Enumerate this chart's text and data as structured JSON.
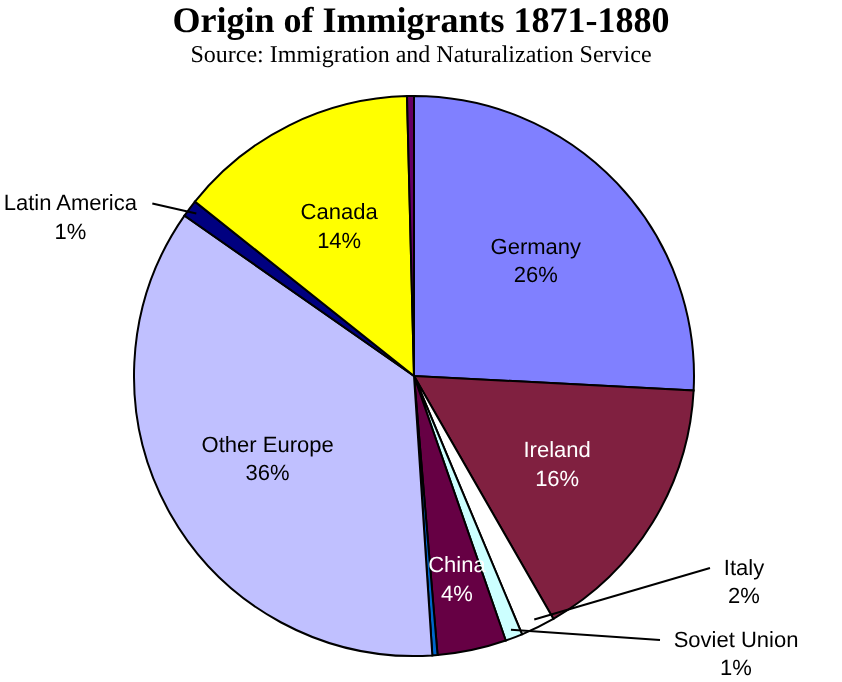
{
  "chart_data": {
    "type": "pie",
    "title": "Origin of Immigrants 1871-1880",
    "subtitle": "Source: Immigration and Naturalization Service",
    "categories": [
      "Germany",
      "Ireland",
      "Italy",
      "Soviet Union",
      "China",
      null,
      "Other Europe",
      "Latin America",
      "Canada",
      null
    ],
    "values": [
      26,
      16,
      2,
      1,
      4,
      0.3,
      36,
      1,
      14,
      0.4
    ],
    "value_labels": [
      "26%",
      "16%",
      "2%",
      "1%",
      "4%",
      null,
      "36%",
      "1%",
      "14%",
      null
    ],
    "colors": [
      "#8080ff",
      "#802040",
      "#ffffff",
      "#ccffff",
      "#660044",
      "#0066cc",
      "#c0c0ff",
      "#000080",
      "#ffff00",
      "#660066"
    ]
  }
}
